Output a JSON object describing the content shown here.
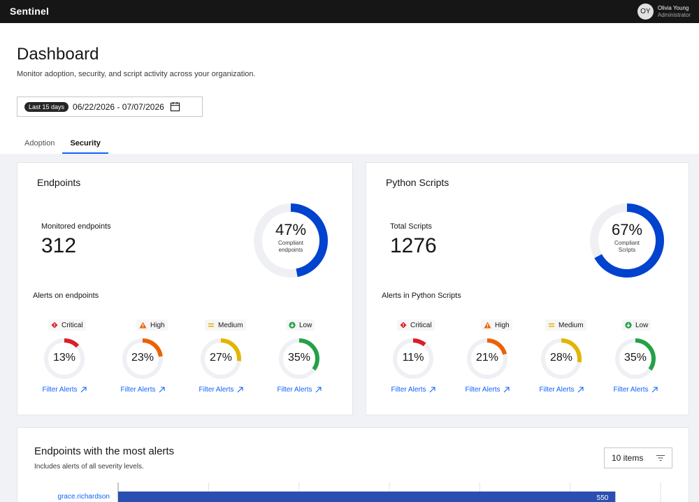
{
  "app": {
    "brand": "Sentinel"
  },
  "user": {
    "initials": "OY",
    "name": "Olivia Young",
    "role": "Administrator"
  },
  "page": {
    "title": "Dashboard",
    "subtitle": "Monitor adoption, security, and script activity across your organization."
  },
  "date_range": {
    "preset": "Last 15 days",
    "range": "06/22/2026 - 07/07/2026",
    "icon": "calendar-icon"
  },
  "tabs": [
    {
      "label": "Adoption",
      "active": false
    },
    {
      "label": "Security",
      "active": true
    }
  ],
  "colors": {
    "primary": "#0043ce",
    "critical": "#da1e28",
    "high": "#eb6200",
    "medium": "#e2b500",
    "low": "#24a148",
    "link": "#0f62fe",
    "bar": "#2b4fb0"
  },
  "endpoints": {
    "title": "Endpoints",
    "metric_label": "Monitored endpoints",
    "metric_value": "312",
    "compliance_pct_text": "47%",
    "compliance_fraction": 0.47,
    "compliance_caption_1": "Compliant",
    "compliance_caption_2": "endpoints",
    "alerts_label": "Alerts on endpoints",
    "alerts": [
      {
        "label": "Critical",
        "icon": "critical-icon",
        "pct_text": "13%",
        "fraction": 0.13,
        "link": "Filter Alerts"
      },
      {
        "label": "High",
        "icon": "high-icon",
        "pct_text": "23%",
        "fraction": 0.23,
        "link": "Filter Alerts"
      },
      {
        "label": "Medium",
        "icon": "medium-icon",
        "pct_text": "27%",
        "fraction": 0.27,
        "link": "Filter Alerts"
      },
      {
        "label": "Low",
        "icon": "low-icon",
        "pct_text": "35%",
        "fraction": 0.35,
        "link": "Filter Alerts"
      }
    ]
  },
  "scripts": {
    "title": "Python Scripts",
    "metric_label": "Total Scripts",
    "metric_value": "1276",
    "compliance_pct_text": "67%",
    "compliance_fraction": 0.67,
    "compliance_caption_1": "Compliant",
    "compliance_caption_2": "Scripts",
    "alerts_label": "Alerts in Python Scripts",
    "alerts": [
      {
        "label": "Critical",
        "icon": "critical-icon",
        "pct_text": "11%",
        "fraction": 0.11,
        "link": "Filter Alerts"
      },
      {
        "label": "High",
        "icon": "high-icon",
        "pct_text": "21%",
        "fraction": 0.21,
        "link": "Filter Alerts"
      },
      {
        "label": "Medium",
        "icon": "medium-icon",
        "pct_text": "28%",
        "fraction": 0.28,
        "link": "Filter Alerts"
      },
      {
        "label": "Low",
        "icon": "low-icon",
        "pct_text": "35%",
        "fraction": 0.35,
        "link": "Filter Alerts"
      }
    ]
  },
  "most_alerts": {
    "title": "Endpoints with the most alerts",
    "subtitle": "Includes alerts of all severity levels.",
    "items_select": "10 items",
    "filter_icon": "filter-icon"
  },
  "chart_data": {
    "type": "bar",
    "orientation": "horizontal",
    "categories": [
      "grace.richardson"
    ],
    "values": [
      550
    ],
    "xlim": [
      0,
      600
    ],
    "grid": true
  }
}
